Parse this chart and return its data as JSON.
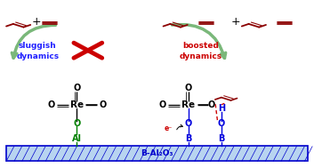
{
  "bg_color": "#ffffff",
  "surface_color": "#0000cc",
  "surface_face": "#b8d4f0",
  "surface_label": "B-Al₂O₃",
  "surface_label_color": "#0000cc",
  "left_label1": "sluggish",
  "left_label2": "dynamics",
  "left_label_color": "#2222ff",
  "right_label1": "boosted",
  "right_label2": "dynamics",
  "right_label_color": "#cc0000",
  "cross_color": "#cc0000",
  "arrow_fill": "#7ab87a",
  "arrow_edge": "#5a8a5a",
  "alkene_color": "#8b0000",
  "black": "#000000",
  "green_color": "#008000",
  "blue_color": "#0000dd",
  "red_dash_color": "#cc0000",
  "eminus_color": "#cc0000",
  "fig_w": 3.53,
  "fig_h": 1.89,
  "dpi": 100
}
